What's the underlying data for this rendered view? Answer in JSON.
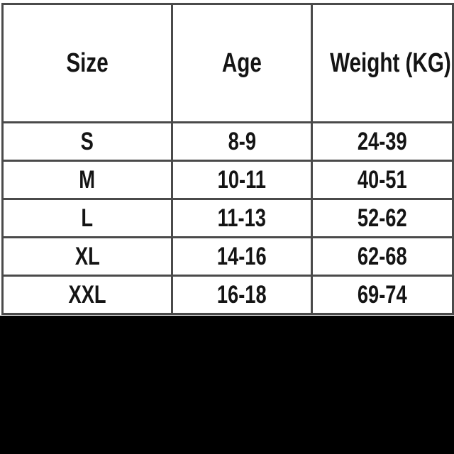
{
  "chart_data": {
    "type": "table",
    "columns": [
      "Size",
      "Age",
      "Weight (KG)"
    ],
    "rows": [
      [
        "S",
        "8-9",
        "24-39"
      ],
      [
        "M",
        "10-11",
        "40-51"
      ],
      [
        "L",
        "11-13",
        "52-62"
      ],
      [
        "XL",
        "14-16",
        "62-68"
      ],
      [
        "XXL",
        "16-18",
        "69-74"
      ]
    ],
    "layout": {
      "grid": "on",
      "header_row_tall": true,
      "bottom_black_band": true
    }
  },
  "colors": {
    "background": "#ffffff",
    "border": "#4a4a4a",
    "text": "#141414",
    "bottom_band": "#000000"
  }
}
